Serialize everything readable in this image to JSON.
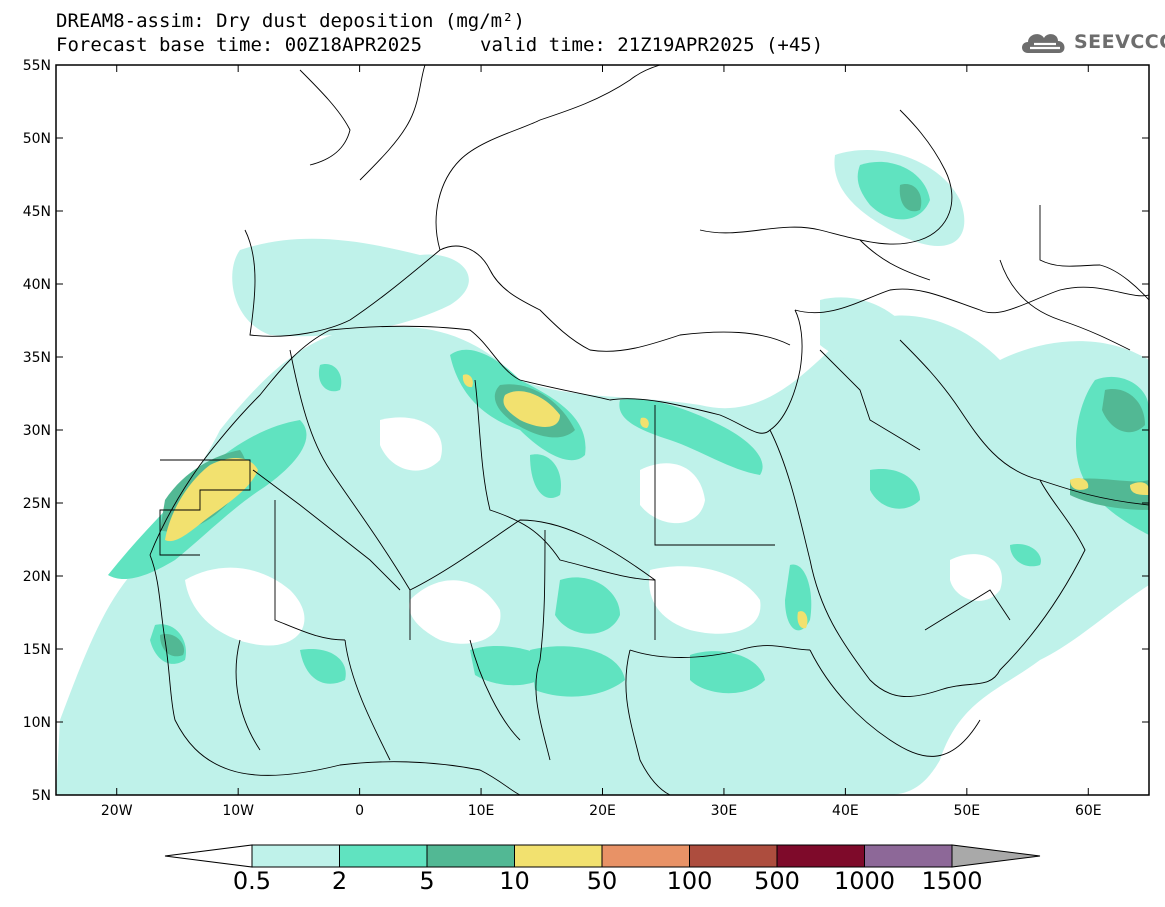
{
  "title": {
    "line1": "DREAM8-assim: Dry dust deposition (mg/m²)",
    "line2": "Forecast base time: 00Z18APR2025",
    "valid": "valid time: 21Z19APR2025 (+45)"
  },
  "logo": {
    "text": "SEEVCCC",
    "icon": "cloud-icon",
    "color": "#6d6d6d"
  },
  "map": {
    "lat_range": [
      5,
      55
    ],
    "lon_range": [
      -25,
      65
    ],
    "lat_ticks": [
      {
        "v": 55,
        "label": "55N"
      },
      {
        "v": 50,
        "label": "50N"
      },
      {
        "v": 45,
        "label": "45N"
      },
      {
        "v": 40,
        "label": "40N"
      },
      {
        "v": 35,
        "label": "35N"
      },
      {
        "v": 30,
        "label": "30N"
      },
      {
        "v": 25,
        "label": "25N"
      },
      {
        "v": 20,
        "label": "20N"
      },
      {
        "v": 15,
        "label": "15N"
      },
      {
        "v": 10,
        "label": "10N"
      },
      {
        "v": 5,
        "label": "5N"
      }
    ],
    "lon_ticks": [
      {
        "v": -20,
        "label": "20W"
      },
      {
        "v": -10,
        "label": "10W"
      },
      {
        "v": 0,
        "label": "0"
      },
      {
        "v": 10,
        "label": "10E"
      },
      {
        "v": 20,
        "label": "20E"
      },
      {
        "v": 30,
        "label": "30E"
      },
      {
        "v": 40,
        "label": "40E"
      },
      {
        "v": 50,
        "label": "50E"
      },
      {
        "v": 60,
        "label": "60E"
      }
    ]
  },
  "colorbar": {
    "levels": [
      "0.5",
      "2",
      "5",
      "10",
      "50",
      "100",
      "500",
      "1000",
      "1500"
    ],
    "colors": [
      "#bff2ea",
      "#60e3c0",
      "#52b894",
      "#f2e16f",
      "#e89266",
      "#ad4d3e",
      "#7e0a2a",
      "#8d6898",
      "#a9a9a9"
    ]
  }
}
